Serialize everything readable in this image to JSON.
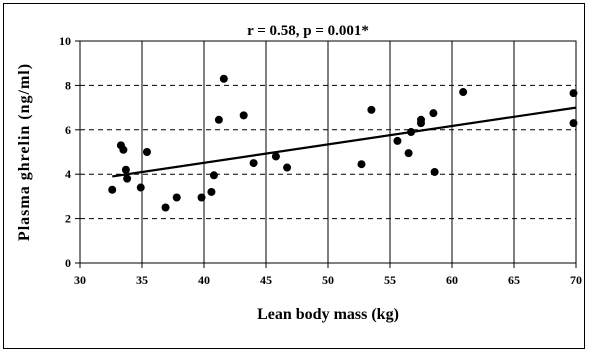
{
  "chart_data": {
    "type": "scatter",
    "title": "",
    "annotation": "r = 0.58, p = 0.001*",
    "xlabel": "Lean body mass (kg)",
    "ylabel": "Plasma ghrelin (ng/ml)",
    "xlim": [
      30,
      70
    ],
    "ylim": [
      0,
      10
    ],
    "x_ticks": [
      "30",
      "35",
      "40",
      "45",
      "50",
      "55",
      "60",
      "65",
      "70"
    ],
    "y_ticks": [
      "0",
      "2",
      "4",
      "6",
      "8",
      "10"
    ],
    "grid": {
      "vertical": "solid",
      "horizontal": "dashed"
    },
    "points": [
      {
        "x": 32.6,
        "y": 3.3
      },
      {
        "x": 33.3,
        "y": 5.3
      },
      {
        "x": 33.5,
        "y": 5.1
      },
      {
        "x": 33.7,
        "y": 4.2
      },
      {
        "x": 33.8,
        "y": 3.8
      },
      {
        "x": 34.9,
        "y": 3.4
      },
      {
        "x": 35.4,
        "y": 5.0
      },
      {
        "x": 36.9,
        "y": 2.5
      },
      {
        "x": 37.8,
        "y": 2.95
      },
      {
        "x": 39.8,
        "y": 2.95
      },
      {
        "x": 40.6,
        "y": 3.2
      },
      {
        "x": 40.8,
        "y": 3.95
      },
      {
        "x": 41.2,
        "y": 6.45
      },
      {
        "x": 41.6,
        "y": 8.3
      },
      {
        "x": 43.2,
        "y": 6.65
      },
      {
        "x": 44.0,
        "y": 4.5
      },
      {
        "x": 45.8,
        "y": 4.8
      },
      {
        "x": 46.7,
        "y": 4.3
      },
      {
        "x": 52.7,
        "y": 4.45
      },
      {
        "x": 53.5,
        "y": 6.9
      },
      {
        "x": 55.6,
        "y": 5.5
      },
      {
        "x": 56.5,
        "y": 4.95
      },
      {
        "x": 56.7,
        "y": 5.9
      },
      {
        "x": 57.5,
        "y": 6.3
      },
      {
        "x": 57.5,
        "y": 6.45
      },
      {
        "x": 58.5,
        "y": 6.75
      },
      {
        "x": 58.6,
        "y": 4.1
      },
      {
        "x": 60.9,
        "y": 7.7
      },
      {
        "x": 69.8,
        "y": 7.65
      },
      {
        "x": 69.8,
        "y": 6.3
      }
    ],
    "trendline": {
      "x": [
        32.6,
        70
      ],
      "y": [
        3.9,
        7.0
      ]
    }
  }
}
